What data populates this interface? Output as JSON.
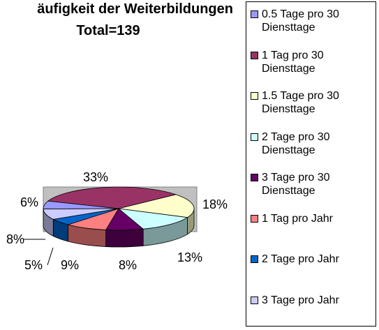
{
  "chart_data": {
    "type": "pie",
    "title": "äufigkeit der Weiterbildungen",
    "subtitle": "Total=139",
    "categories": [
      "0.5 Tage pro 30 Diensttage",
      "1 Tag pro 30 Diensttage",
      "1.5 Tage pro 30 Diensttage",
      "2 Tage pro 30 Diensttage",
      "3 Tage pro 30 Diensttage",
      "1 Tag pro Jahr",
      "2 Tage pro Jahr",
      "3 Tage pro Jahr"
    ],
    "values": [
      6,
      33,
      18,
      13,
      8,
      9,
      5,
      8
    ],
    "value_labels": [
      "6%",
      "33%",
      "18%",
      "13%",
      "8%",
      "9%",
      "5%",
      "8%"
    ],
    "colors": [
      "#9999ff",
      "#993366",
      "#ffffcc",
      "#ccffff",
      "#660066",
      "#ff8080",
      "#0066cc",
      "#ccccff"
    ],
    "legend": "right"
  }
}
